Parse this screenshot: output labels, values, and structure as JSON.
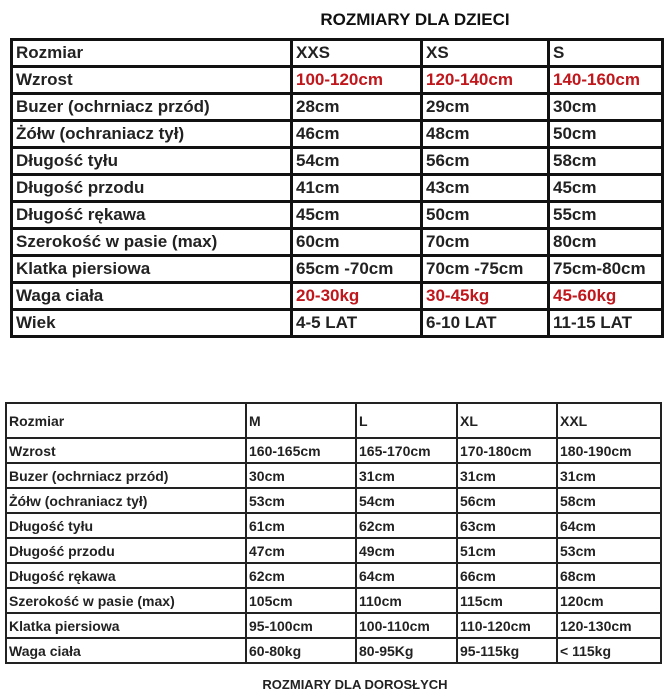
{
  "kids": {
    "title": "ROZMIARY DLA DZIECI",
    "rows": [
      [
        "Rozmiar",
        "XXS",
        "XS",
        "S"
      ],
      [
        "Wzrost",
        "100-120cm",
        "120-140cm",
        "140-160cm"
      ],
      [
        "Buzer (ochrniacz przód)",
        "28cm",
        "29cm",
        "30cm"
      ],
      [
        "Żółw (ochraniacz tył)",
        "46cm",
        "48cm",
        "50cm"
      ],
      [
        "Długość tyłu",
        "54cm",
        "56cm",
        "58cm"
      ],
      [
        "Długość przodu",
        "41cm",
        "43cm",
        "45cm"
      ],
      [
        "Długość rękawa",
        "45cm",
        "50cm",
        "55cm"
      ],
      [
        "Szerokość w pasie (max)",
        "60cm",
        "70cm",
        "80cm"
      ],
      [
        "Klatka piersiowa",
        "65cm -70cm",
        "70cm -75cm",
        "75cm-80cm"
      ],
      [
        "Waga ciała",
        "20-30kg",
        "30-45kg",
        "45-60kg"
      ],
      [
        "Wiek",
        "4-5 LAT",
        "6-10 LAT",
        "11-15 LAT"
      ]
    ],
    "highlight_color": "#c0171c"
  },
  "adult": {
    "title": "ROZMIARY DLA DOROSŁYCH",
    "rows": [
      [
        "Rozmiar",
        "M",
        "L",
        "XL",
        "XXL"
      ],
      [
        "Wzrost",
        "160-165cm",
        "165-170cm",
        "170-180cm",
        "180-190cm"
      ],
      [
        "Buzer (ochrniacz przód)",
        "30cm",
        "31cm",
        "31cm",
        "31cm"
      ],
      [
        "Żółw (ochraniacz tył)",
        "53cm",
        "54cm",
        "56cm",
        "58cm"
      ],
      [
        "Długość tyłu",
        "61cm",
        "62cm",
        "63cm",
        "64cm"
      ],
      [
        "Długość przodu",
        "47cm",
        "49cm",
        "51cm",
        "53cm"
      ],
      [
        "Długość rękawa",
        "62cm",
        "64cm",
        "66cm",
        "68cm"
      ],
      [
        "Szerokość w pasie (max)",
        "105cm",
        "110cm",
        "115cm",
        "120cm"
      ],
      [
        "Klatka piersiowa",
        "95-100cm",
        "100-110cm",
        "110-120cm",
        "120-130cm"
      ],
      [
        "Waga ciała",
        "60-80kg",
        "80-95Kg",
        "95-115kg",
        "< 115kg"
      ]
    ]
  }
}
